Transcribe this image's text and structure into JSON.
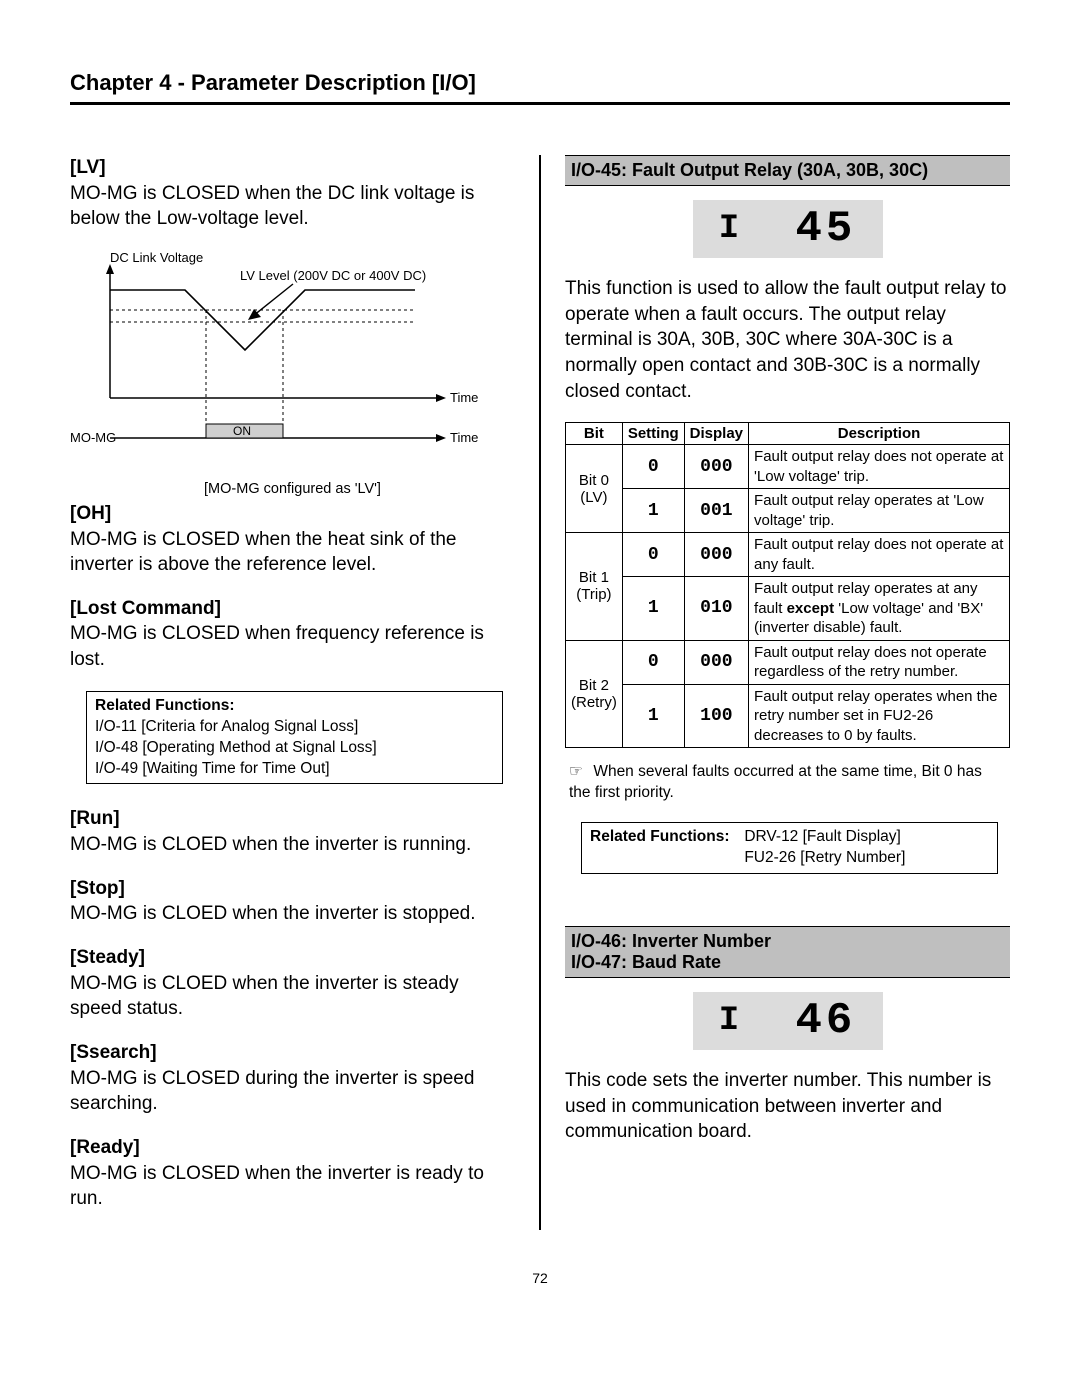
{
  "header": "Chapter 4 - Parameter Description [I/O]",
  "page_number": "72",
  "left": {
    "lv": {
      "label": "[LV]",
      "text": "MO-MG is CLOSED when the DC link voltage is below the Low-voltage level."
    },
    "diagram": {
      "dc_link_label": "DC Link Voltage",
      "lv_level_label": "LV Level (200V DC or 400V DC)",
      "time_label1": "Time",
      "time_label2": "Time",
      "mo_mg_label": "MO-MG",
      "on_label": "ON",
      "caption": "[MO-MG configured as 'LV']",
      "colors": {
        "axis": "#000000",
        "dash": "#000000",
        "on_fill": "#cfcfcf"
      }
    },
    "oh": {
      "label": "[OH]",
      "text": "MO-MG is CLOSED when the heat sink of the inverter is above the reference level."
    },
    "lost": {
      "label": "[Lost Command]",
      "text": "MO-MG is CLOSED when frequency reference is lost."
    },
    "related1": {
      "label": "Related Functions:",
      "lines": [
        "I/O-11 [Criteria for Analog Signal Loss]",
        "I/O-48 [Operating Method at Signal Loss]",
        "I/O-49 [Waiting Time for Time Out]"
      ]
    },
    "run": {
      "label": "[Run]",
      "text": "MO-MG is CLOED when the inverter is running."
    },
    "stop": {
      "label": "[Stop]",
      "text": "MO-MG is CLOED when the inverter is stopped."
    },
    "steady": {
      "label": "[Steady]",
      "text": "MO-MG is CLOED when the inverter is steady speed status."
    },
    "ssearch": {
      "label": "[Ssearch]",
      "text": "MO-MG is CLOSED during the inverter is speed searching."
    },
    "ready": {
      "label": "[Ready]",
      "text": "MO-MG is CLOSED when the inverter is ready to run."
    }
  },
  "right": {
    "io45": {
      "bar": "I/O-45: Fault Output Relay (30A, 30B, 30C)",
      "lcd_left": "I",
      "lcd_right": "45",
      "text": "This function is used to allow the fault output relay to operate when a fault occurs. The output relay terminal is 30A, 30B, 30C where 30A-30C is a normally open contact and 30B-30C is a normally closed contact."
    },
    "fault_table": {
      "headers": [
        "Bit",
        "Setting",
        "Display",
        "Description"
      ],
      "groups": [
        {
          "bit": "Bit 0\n(LV)",
          "rows": [
            {
              "setting": "0",
              "display": "000",
              "desc": "Fault output relay does not operate at 'Low voltage' trip."
            },
            {
              "setting": "1",
              "display": "001",
              "desc": "Fault output relay operates at 'Low voltage' trip."
            }
          ]
        },
        {
          "bit": "Bit 1\n(Trip)",
          "rows": [
            {
              "setting": "0",
              "display": "000",
              "desc": "Fault output relay does not operate at any fault."
            },
            {
              "setting": "1",
              "display": "010",
              "desc_html": "Fault output relay operates at any fault <b>except</b> 'Low voltage' and 'BX' (inverter disable) fault."
            }
          ]
        },
        {
          "bit": "Bit 2\n(Retry)",
          "rows": [
            {
              "setting": "0",
              "display": "000",
              "desc": "Fault output relay does not operate regardless of the retry number."
            },
            {
              "setting": "1",
              "display": "100",
              "desc": "Fault output relay operates when the retry number set in FU2-26 decreases to 0 by faults."
            }
          ]
        }
      ]
    },
    "note": "When several faults occurred at the same time, Bit 0 has the first priority.",
    "related2": {
      "label": "Related Functions:",
      "lines": [
        "DRV-12 [Fault Display]",
        "FU2-26 [Retry Number]"
      ]
    },
    "io46": {
      "bar": "I/O-46: Inverter Number\nI/O-47: Baud Rate",
      "lcd_left": "I",
      "lcd_right": "46",
      "text": "This code sets the inverter number. This number is used in communication between inverter and communication board."
    }
  }
}
